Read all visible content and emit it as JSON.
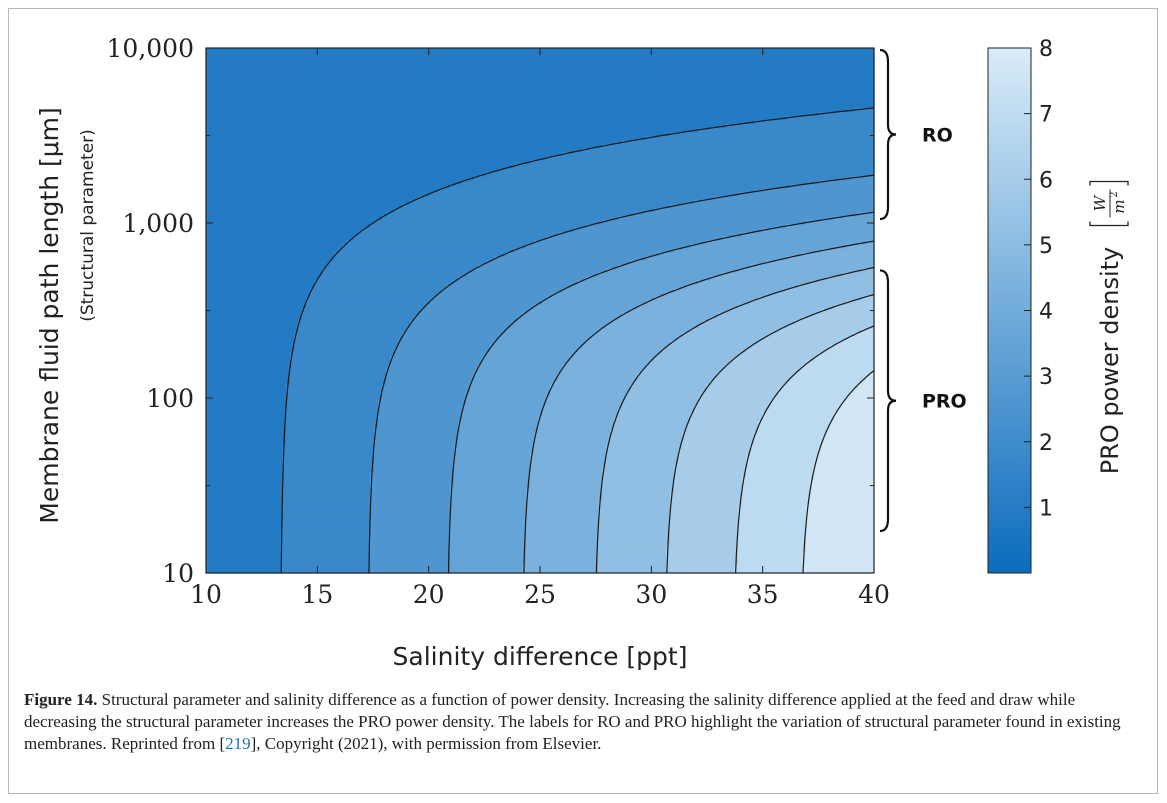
{
  "chart_data": {
    "type": "heatmap",
    "subtype": "filled-contour",
    "xlabel": "Salinity difference [ppt]",
    "ylabel": "Membrane fluid path length [μm]",
    "ylabel_sub": "(Structural parameter)",
    "x_range": [
      10,
      40
    ],
    "x_ticks": [
      "10",
      "15",
      "20",
      "25",
      "30",
      "35",
      "40"
    ],
    "x_tick_values": [
      10,
      15,
      20,
      25,
      30,
      35,
      40
    ],
    "y_scale": "log",
    "y_range": [
      10,
      10000
    ],
    "y_ticks": [
      "10",
      "100",
      "1,000",
      "10,000"
    ],
    "y_tick_values": [
      10,
      100,
      1000,
      10000
    ],
    "colorbar": {
      "label": "PRO power density",
      "unit_numerator": "W",
      "unit_denominator": "m",
      "unit_exponent": "2",
      "range": [
        0,
        8
      ],
      "ticks": [
        "1",
        "2",
        "3",
        "4",
        "5",
        "6",
        "7",
        "8"
      ],
      "tick_values": [
        1,
        2,
        3,
        4,
        5,
        6,
        7,
        8
      ],
      "color_low": "#0b6cbd",
      "color_high": "#d9ecf8"
    },
    "contour_levels": [
      0.5,
      1.35,
      2.2,
      3.05,
      3.9,
      4.75,
      5.6,
      6.45,
      7.3
    ],
    "annotations": [
      {
        "label": "RO",
        "y_from": 1000,
        "y_to": 10000
      },
      {
        "label": "PRO",
        "y_from": 10,
        "y_to": 550
      }
    ],
    "grid": false
  },
  "caption": {
    "label": "Figure 14.",
    "text1": " Structural parameter and salinity difference as a function of power density. Increasing the salinity difference applied at the feed and draw while decreasing the structural parameter increases the PRO power density. The labels for RO and PRO highlight the variation of structural parameter found in existing membranes. Reprinted from [",
    "ref": "219",
    "text2": "], Copyright (2021), with permission from Elsevier."
  }
}
